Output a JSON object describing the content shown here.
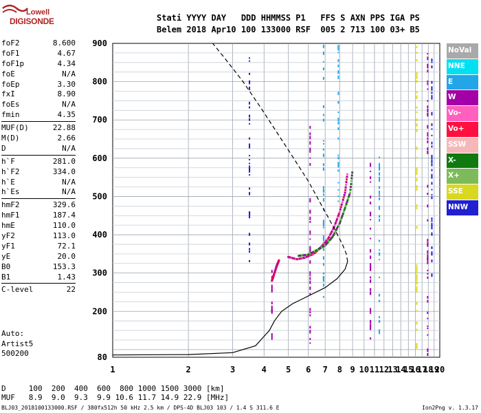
{
  "logo": {
    "line1": "Lowell",
    "line2": "DIGISONDE"
  },
  "header": {
    "line1": "Stati YYYY DAY   DDD HHMMSS P1   FFS S AXN PPS IGA PS",
    "line2": "Belem 2018 Apr10 100 133000 RSF  005 2 713 100 03+ B5"
  },
  "params_group1": [
    {
      "label": "foF2",
      "value": "8.600"
    },
    {
      "label": "foF1",
      "value": "4.67"
    },
    {
      "label": "foF1p",
      "value": "4.34"
    },
    {
      "label": "foE",
      "value": "N/A"
    },
    {
      "label": "foEp",
      "value": "3.30"
    },
    {
      "label": "fxI",
      "value": "8.90"
    },
    {
      "label": "foEs",
      "value": "N/A"
    },
    {
      "label": "fmin",
      "value": "4.35"
    }
  ],
  "params_group2": [
    {
      "label": "MUF(D)",
      "value": "22.88"
    },
    {
      "label": "M(D)",
      "value": "2.66"
    },
    {
      "label": "D",
      "value": "N/A"
    }
  ],
  "params_group3": [
    {
      "label": "h`F",
      "value": "281.0"
    },
    {
      "label": "h`F2",
      "value": "334.0"
    },
    {
      "label": "h`E",
      "value": "N/A"
    },
    {
      "label": "h`Es",
      "value": "N/A"
    }
  ],
  "params_group4": [
    {
      "label": "hmF2",
      "value": "329.6"
    },
    {
      "label": "hmF1",
      "value": "187.4"
    },
    {
      "label": "hmE",
      "value": "110.0"
    },
    {
      "label": "yF2",
      "value": "113.0"
    },
    {
      "label": "yF1",
      "value": "72.1"
    },
    {
      "label": "yE",
      "value": "20.0"
    },
    {
      "label": "B0",
      "value": "153.3"
    },
    {
      "label": "B1",
      "value": "1.43"
    }
  ],
  "params_group5": [
    {
      "label": "C-level",
      "value": "22"
    }
  ],
  "auto": {
    "line1": "Auto:",
    "line2": "Artist5",
    "line3": "500200"
  },
  "legend": [
    {
      "label": "NoVal",
      "color": "#a9a9a9"
    },
    {
      "label": "NNE",
      "color": "#00e0f0"
    },
    {
      "label": "E",
      "color": "#22a6e8"
    },
    {
      "label": "W",
      "color": "#a300a8"
    },
    {
      "label": "Vo-",
      "color": "#ff60c0"
    },
    {
      "label": "Vo+",
      "color": "#ff1040"
    },
    {
      "label": "SSW",
      "color": "#f5b8b8"
    },
    {
      "label": "X-",
      "color": "#107a10"
    },
    {
      "label": "X+",
      "color": "#7dbb5a"
    },
    {
      "label": "SSE",
      "color": "#d8d820"
    },
    {
      "label": "NNW",
      "color": "#2020d0"
    }
  ],
  "muf_table": {
    "line1": "D     100  200  400  600  800 1000 1500 3000 [km]",
    "line2": "MUF   8.9  9.0  9.3  9.9 10.6 11.7 14.9 22.9 [MHz]"
  },
  "footer": "BLJ03_2018100133000.RSF / 380fx512h 50 kHz 2.5 km / DPS-4D BLJ03 103 / 1.4 S 311.6 E",
  "version": "Ion2Png v. 1.3.17",
  "chart_data": {
    "type": "scatter",
    "x_ticks": [
      "1",
      "2",
      "3",
      "4",
      "5",
      "6",
      "7",
      "8",
      "9",
      "10",
      "11",
      "12",
      "13",
      "14",
      "15",
      "16",
      "17",
      "18",
      "19",
      "20"
    ],
    "y_ticks": [
      "80",
      "200",
      "300",
      "400",
      "500",
      "600",
      "700",
      "800",
      "900"
    ],
    "xlim": [
      1,
      20
    ],
    "ylim": [
      80,
      900
    ],
    "x_scale": "log",
    "y_scale": "linear",
    "grid": true,
    "profile_solid": [
      [
        1,
        86
      ],
      [
        2,
        87
      ],
      [
        3,
        92
      ],
      [
        3.7,
        110
      ],
      [
        4.2,
        150
      ],
      [
        4.4,
        175
      ],
      [
        4.7,
        200
      ],
      [
        5.2,
        220
      ],
      [
        6,
        240
      ],
      [
        7,
        262
      ],
      [
        7.8,
        285
      ],
      [
        8.4,
        310
      ],
      [
        8.6,
        330
      ]
    ],
    "profile_dashed": [
      [
        8.6,
        330
      ],
      [
        8.5,
        350
      ],
      [
        8.2,
        375
      ],
      [
        7.7,
        410
      ],
      [
        7,
        460
      ],
      [
        6,
        540
      ],
      [
        4.9,
        630
      ],
      [
        3.9,
        730
      ],
      [
        3.3,
        800
      ],
      [
        2.8,
        860
      ],
      [
        2.5,
        900
      ]
    ],
    "trace_o": [
      [
        5,
        342
      ],
      [
        5.4,
        336
      ],
      [
        5.8,
        340
      ],
      [
        6.3,
        350
      ],
      [
        6.8,
        370
      ],
      [
        7.2,
        390
      ],
      [
        7.6,
        420
      ],
      [
        8.0,
        460
      ],
      [
        8.4,
        510
      ],
      [
        8.6,
        565
      ]
    ],
    "trace_x": [
      [
        5.5,
        345
      ],
      [
        6,
        348
      ],
      [
        6.5,
        360
      ],
      [
        7,
        372
      ],
      [
        7.5,
        395
      ],
      [
        8,
        430
      ],
      [
        8.4,
        470
      ],
      [
        8.8,
        510
      ],
      [
        9,
        570
      ]
    ],
    "trace_low": [
      [
        4.3,
        280
      ],
      [
        4.4,
        300
      ],
      [
        4.5,
        320
      ],
      [
        4.6,
        335
      ]
    ],
    "noise_columns": [
      {
        "x": 3.5,
        "y0": 330,
        "y1": 880,
        "color": "#2020d0"
      },
      {
        "x": 4.3,
        "y0": 120,
        "y1": 310,
        "color": "#a300a8"
      },
      {
        "x": 6.1,
        "y0": 100,
        "y1": 690,
        "color": "#a300a8"
      },
      {
        "x": 6.9,
        "y0": 230,
        "y1": 900,
        "color": "#22a6e8"
      },
      {
        "x": 7.9,
        "y0": 460,
        "y1": 900,
        "color": "#22a6e8"
      },
      {
        "x": 10.6,
        "y0": 120,
        "y1": 600,
        "color": "#a300a8"
      },
      {
        "x": 11.5,
        "y0": 120,
        "y1": 610,
        "color": "#22a6e8"
      },
      {
        "x": 16.2,
        "y0": 100,
        "y1": 900,
        "color": "#d8d820"
      },
      {
        "x": 17.9,
        "y0": 90,
        "y1": 900,
        "color": "#a300a8"
      },
      {
        "x": 18.6,
        "y0": 280,
        "y1": 900,
        "color": "#2020d0"
      }
    ]
  }
}
